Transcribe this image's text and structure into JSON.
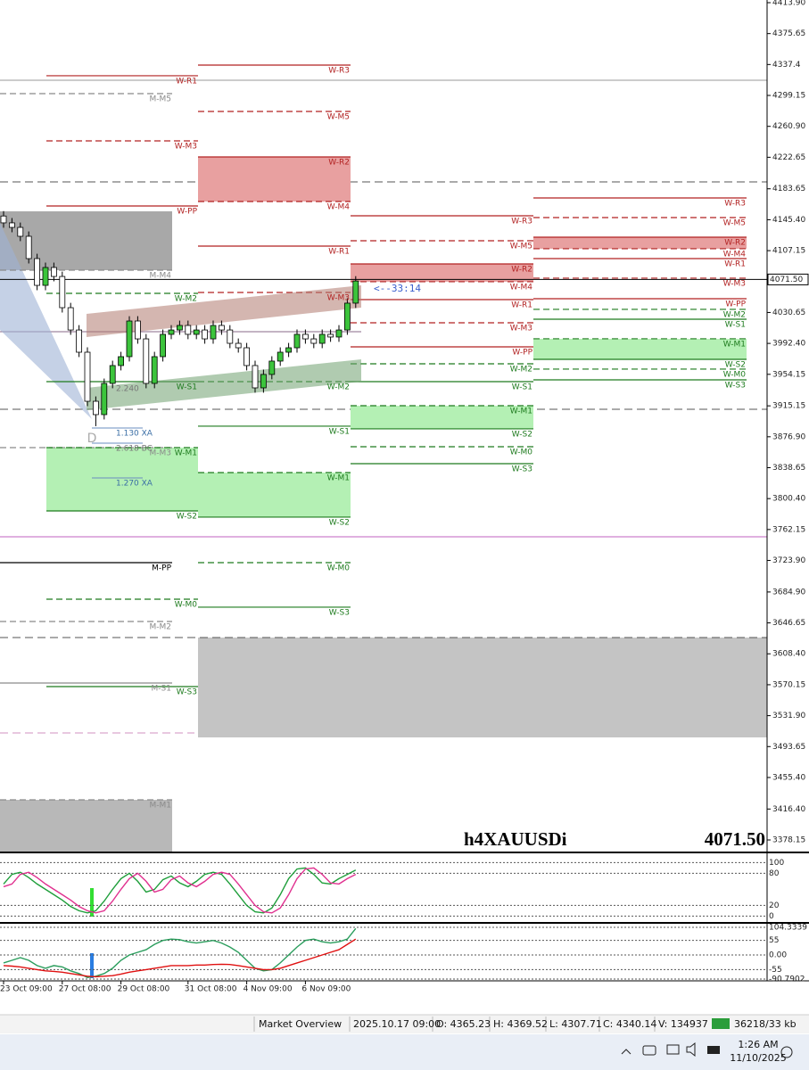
{
  "chart_data": {
    "type": "candlestick",
    "symbol": "h4XAUUSDi",
    "categories": [
      "23 Oct 09:00",
      null,
      null,
      null,
      null,
      null,
      null,
      "27 Oct 08:00",
      null,
      null,
      null,
      null,
      null,
      null,
      "29 Oct 08:00",
      null,
      null,
      null,
      null,
      null,
      null,
      null,
      "31 Oct 08:00",
      null,
      null,
      null,
      null,
      null,
      null,
      "4 Nov 09:00",
      null,
      null,
      null,
      null,
      null,
      null,
      "6 Nov 09:00",
      null,
      null,
      null,
      null,
      null,
      null
    ],
    "open": [
      4150.0,
      4141.5,
      4135.9,
      4124.9,
      4097.3,
      4064.2,
      4086.3,
      4075.2,
      4036.6,
      4009.0,
      3981.5,
      3920.8,
      3904.3,
      3942.9,
      3965.0,
      3976.0,
      4020.1,
      3998.0,
      3942.9,
      3976.0,
      4003.6,
      4009.0,
      4014.6,
      4003.6,
      4009.0,
      3998.0,
      4014.6,
      4009.0,
      3992.5,
      3987.0,
      3965.0,
      3937.4,
      3954.0,
      3970.5,
      3981.5,
      3987.0,
      4003.6,
      3998.0,
      3992.5,
      4003.6,
      4000.3,
      4009.0,
      4042.2
    ],
    "high": [
      4156.0,
      4147.5,
      4141.9,
      4130.9,
      4103.3,
      4092.3,
      4092.3,
      4081.2,
      4042.6,
      4015.0,
      3987.5,
      3926.8,
      3948.9,
      3971.0,
      3982.0,
      4026.1,
      4026.1,
      4004.0,
      3982.0,
      4009.6,
      4015.0,
      4020.6,
      4020.6,
      4015.0,
      4015.0,
      4020.6,
      4020.6,
      4015.0,
      3998.5,
      3993.0,
      3971.0,
      3960.0,
      3976.5,
      3987.5,
      3993.0,
      4009.6,
      4009.6,
      4004.0,
      4009.6,
      4009.6,
      4015.0,
      4048.2,
      4075.6
    ],
    "low": [
      4135.5,
      4129.9,
      4118.9,
      4091.3,
      4058.2,
      4058.2,
      4069.2,
      4030.6,
      4003.0,
      3975.5,
      3914.8,
      3890.0,
      3898.3,
      3936.9,
      3959.0,
      3970.0,
      3992.0,
      3936.9,
      3936.9,
      3970.0,
      3997.6,
      4003.0,
      3997.6,
      3997.6,
      3992.0,
      3992.0,
      4003.0,
      3986.5,
      3981.0,
      3959.0,
      3931.4,
      3931.4,
      3948.0,
      3964.5,
      3975.5,
      3981.0,
      3992.0,
      3986.5,
      3986.5,
      3994.3,
      3994.3,
      4003.0,
      4036.2
    ],
    "close": [
      4141.5,
      4135.9,
      4124.9,
      4097.3,
      4064.2,
      4086.3,
      4075.2,
      4036.6,
      4009.0,
      3981.5,
      3920.8,
      3904.3,
      3942.9,
      3965.0,
      3976.0,
      4020.1,
      3998.0,
      3942.9,
      3976.0,
      4003.6,
      4009.0,
      4014.6,
      4003.6,
      4009.0,
      3998.0,
      4014.6,
      4009.0,
      3992.5,
      3987.0,
      3965.0,
      3937.4,
      3954.0,
      3970.5,
      3981.5,
      3987.0,
      4003.6,
      3998.0,
      3992.5,
      4003.6,
      4000.3,
      4009.0,
      4042.2,
      4069.6
    ],
    "up_color": "#3cc43c",
    "down_color": "#ffffff",
    "ylim": [
      3363.8,
      4417.2
    ],
    "yticks": [
      {
        "value": 4413.9,
        "label": "4413.90"
      },
      4375.65,
      4337.4,
      4299.15,
      {
        "value": 4260.9,
        "label": "4260.90"
      },
      4222.65,
      4183.65,
      {
        "value": 4145.4,
        "label": "4145.40"
      },
      4107.15,
      4030.65,
      {
        "value": 3992.4,
        "label": "3992.40"
      },
      3954.15,
      3915.15,
      {
        "value": 3876.9,
        "label": "3876.90"
      },
      3838.65,
      {
        "value": 3800.4,
        "label": "3800.40"
      },
      3762.15,
      {
        "value": 3723.9,
        "label": "3723.90"
      },
      {
        "value": 3684.9,
        "label": "3684.90"
      },
      3646.65,
      {
        "value": 3608.4,
        "label": "3608.40"
      },
      3570.15,
      {
        "value": 3531.9,
        "label": "3531.90"
      },
      3493.65,
      {
        "value": 3455.4,
        "label": "3455.40"
      },
      {
        "value": 3416.4,
        "label": "3416.40"
      },
      3378.15
    ],
    "last_price": {
      "value": 4071.5,
      "label": "4071.50"
    },
    "countdown": "<--33:14",
    "levels": [
      {
        "lines": [
          {
            "label": "M-M5",
            "value": 4301.4,
            "color": "#8a8a8a",
            "dashed": true
          },
          {
            "label": "M-M4",
            "value": 4083.0,
            "color": "#8a8a8a",
            "dashed": true
          },
          {
            "label": "M-M3",
            "value": 3863.5,
            "color": "#8a8a8a",
            "dashed": true
          },
          {
            "label": "M-PP",
            "value": 3721.2,
            "color": "#000000",
            "dashed": false
          },
          {
            "label": "M-M2",
            "value": 3648.4,
            "color": "#8a8a8a",
            "dashed": true
          },
          {
            "label": "M-S1",
            "value": 3572.3,
            "color": "#8a8a8a",
            "dashed": false
          },
          {
            "label": "M-M1",
            "value": 3427.8,
            "color": "#8a8a8a",
            "dashed": true
          }
        ]
      },
      {
        "lines": [
          {
            "label": "W-R1",
            "value": 4323.5,
            "color": "#b22222",
            "dashed": false
          },
          {
            "label": "W-M3",
            "value": 4242.9,
            "color": "#b22222",
            "dashed": true
          },
          {
            "label": "W-PP",
            "value": 4162.4,
            "color": "#b22222",
            "dashed": false
          },
          {
            "label": "W-M2",
            "value": 4054.3,
            "color": "#1e7b1e",
            "dashed": true
          },
          {
            "label": "W-S1",
            "value": 3945.1,
            "color": "#1e7b1e",
            "dashed": false
          },
          {
            "label": "W-M1",
            "value": 3863.5,
            "color": "#1e7b1e",
            "dashed": true
          },
          {
            "label": "W-S2",
            "value": 3785.2,
            "color": "#1e7b1e",
            "dashed": false
          },
          {
            "label": "W-M0",
            "value": 3676.0,
            "color": "#1e7b1e",
            "dashed": true
          },
          {
            "label": "W-S3",
            "value": 3567.9,
            "color": "#1e7b1e",
            "dashed": false
          }
        ]
      },
      {
        "lines": [
          {
            "label": "W-R3",
            "value": 4336.7,
            "color": "#b22222",
            "dashed": false
          },
          {
            "label": "W-M5",
            "value": 4279.3,
            "color": "#b22222",
            "dashed": true
          },
          {
            "label": "W-R2",
            "value": 4223.1,
            "color": "#b22222",
            "dashed": false
          },
          {
            "label": "W-M4",
            "value": 4167.9,
            "color": "#b22222",
            "dashed": true
          },
          {
            "label": "W-R1",
            "value": 4112.8,
            "color": "#b22222",
            "dashed": false
          },
          {
            "label": "W-M3",
            "value": 4055.4,
            "color": "#b22222",
            "dashed": true
          },
          {
            "label": "W-M2",
            "value": 3945.1,
            "color": "#1e7b1e",
            "dashed": true
          },
          {
            "label": "W-S1",
            "value": 3890.0,
            "color": "#1e7b1e",
            "dashed": false
          },
          {
            "label": "W-M1",
            "value": 3832.6,
            "color": "#1e7b1e",
            "dashed": true
          },
          {
            "label": "W-S2",
            "value": 3777.5,
            "color": "#1e7b1e",
            "dashed": false
          },
          {
            "label": "W-M0",
            "value": 3721.2,
            "color": "#1e7b1e",
            "dashed": true
          },
          {
            "label": "W-S3",
            "value": 3666.1,
            "color": "#1e7b1e",
            "dashed": false
          }
        ]
      },
      {
        "lines": [
          {
            "label": "W-R3",
            "value": 4150.3,
            "color": "#b22222",
            "dashed": false
          },
          {
            "label": "W-M5",
            "value": 4119.4,
            "color": "#b22222",
            "dashed": true
          },
          {
            "label": "W-R2",
            "value": 4090.7,
            "color": "#b22222",
            "dashed": false
          },
          {
            "label": "W-M4",
            "value": 4068.7,
            "color": "#b22222",
            "dashed": true
          },
          {
            "label": "W-R1",
            "value": 4046.6,
            "color": "#b22222",
            "dashed": false
          },
          {
            "label": "W-M3",
            "value": 4017.9,
            "color": "#b22222",
            "dashed": true
          },
          {
            "label": "W-PP",
            "value": 3988.1,
            "color": "#b22222",
            "dashed": false
          },
          {
            "label": "W-M2",
            "value": 3967.2,
            "color": "#1e7b1e",
            "dashed": true
          },
          {
            "label": "W-S1",
            "value": 3945.1,
            "color": "#1e7b1e",
            "dashed": false
          },
          {
            "label": "W-M1",
            "value": 3915.3,
            "color": "#1e7b1e",
            "dashed": true
          },
          {
            "label": "W-S2",
            "value": 3886.7,
            "color": "#1e7b1e",
            "dashed": false
          },
          {
            "label": "W-M0",
            "value": 3864.6,
            "color": "#1e7b1e",
            "dashed": true
          },
          {
            "label": "W-S3",
            "value": 3843.6,
            "color": "#1e7b1e",
            "dashed": false
          }
        ]
      },
      {
        "lines": [
          {
            "label": "W-R3",
            "value": 4172.3,
            "color": "#b22222",
            "dashed": false
          },
          {
            "label": "W-M5",
            "value": 4148.1,
            "color": "#b22222",
            "dashed": true
          },
          {
            "label": "W-R2",
            "value": 4123.8,
            "color": "#b22222",
            "dashed": false
          },
          {
            "label": "W-M4",
            "value": 4109.5,
            "color": "#b22222",
            "dashed": true
          },
          {
            "label": "W-R1",
            "value": 4097.3,
            "color": "#b22222",
            "dashed": false
          },
          {
            "label": "W-M3",
            "value": 4073.1,
            "color": "#b22222",
            "dashed": true
          },
          {
            "label": "W-PP",
            "value": 4047.7,
            "color": "#b22222",
            "dashed": false
          },
          {
            "label": "W-M2",
            "value": 4034.5,
            "color": "#1e7b1e",
            "dashed": true
          },
          {
            "label": "W-S1",
            "value": 4022.3,
            "color": "#1e7b1e",
            "dashed": false
          },
          {
            "label": "W-M1",
            "value": 3998.1,
            "color": "#1e7b1e",
            "dashed": true
          },
          {
            "label": "W-S2",
            "value": 3972.7,
            "color": "#1e7b1e",
            "dashed": false
          },
          {
            "label": "W-M0",
            "value": 3960.6,
            "color": "#1e7b1e",
            "dashed": true
          },
          {
            "label": "W-S3",
            "value": 3947.3,
            "color": "#1e7b1e",
            "dashed": false
          }
        ]
      }
    ],
    "annotations": [
      "2.240",
      "1.130 XA",
      "2.618 BC",
      "1.270 XA",
      "D"
    ],
    "indicators": [
      {
        "type": "line",
        "ylim": [
          -6,
          109
        ],
        "yticks": [
          100,
          80,
          20,
          0
        ],
        "series": [
          {
            "color": "#1e9e3a",
            "values": [
              60,
              78,
              82,
              72,
              60,
              50,
              40,
              30,
              18,
              10,
              6,
              10,
              28,
              50,
              70,
              80,
              65,
              45,
              50,
              68,
              75,
              62,
              55,
              65,
              78,
              82,
              78,
              60,
              40,
              20,
              8,
              6,
              15,
              40,
              70,
              88,
              90,
              78,
              62,
              60,
              70,
              78,
              86
            ]
          },
          {
            "color": "#e0308f",
            "values": [
              55,
              60,
              78,
              82,
              72,
              60,
              50,
              40,
              30,
              18,
              10,
              6,
              10,
              28,
              50,
              70,
              80,
              65,
              45,
              50,
              68,
              75,
              62,
              55,
              65,
              78,
              82,
              78,
              60,
              40,
              20,
              8,
              6,
              15,
              40,
              70,
              88,
              90,
              78,
              62,
              60,
              70,
              78
            ]
          }
        ]
      },
      {
        "type": "line",
        "ylim": [
          -90.7902,
          104.3339
        ],
        "yticks": [
          104.3339,
          55,
          {
            "value": 0,
            "label": "0.00"
          },
          -55,
          -90.7902
        ],
        "series": [
          {
            "color": "#2a9d5c",
            "values": [
              -30,
              -20,
              -10,
              -20,
              -40,
              -50,
              -40,
              -45,
              -60,
              -70,
              -85,
              -80,
              -70,
              -50,
              -20,
              0,
              10,
              20,
              40,
              55,
              60,
              58,
              50,
              45,
              50,
              55,
              45,
              30,
              10,
              -20,
              -50,
              -60,
              -55,
              -30,
              0,
              30,
              55,
              60,
              50,
              45,
              50,
              60,
              100
            ]
          },
          {
            "color": "#e01010",
            "values": [
              -40,
              -42,
              -45,
              -50,
              -55,
              -60,
              -62,
              -65,
              -70,
              -75,
              -80,
              -82,
              -80,
              -78,
              -72,
              -65,
              -60,
              -55,
              -50,
              -45,
              -40,
              -40,
              -40,
              -38,
              -38,
              -36,
              -35,
              -36,
              -40,
              -45,
              -50,
              -55,
              -55,
              -50,
              -40,
              -30,
              -20,
              -10,
              0,
              10,
              20,
              40,
              60
            ]
          }
        ]
      }
    ]
  },
  "status_bar": [
    "Market Overview",
    "2025.10.17 09:00",
    "O: 4365.23",
    "H: 4369.52",
    "L: 4307.71",
    "C: 4340.14",
    "V: 134937",
    "36218/33 kb"
  ],
  "taskbar": {
    "time": "1:26 AM",
    "date": "11/10/2025"
  }
}
